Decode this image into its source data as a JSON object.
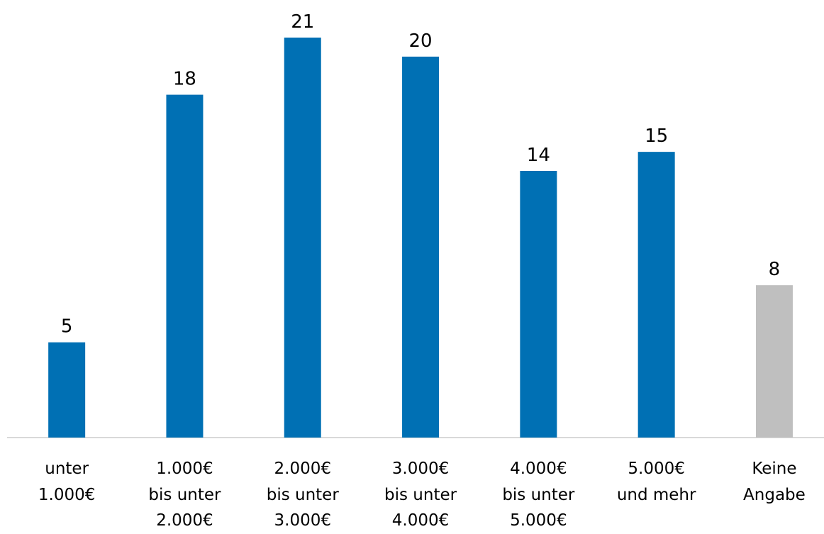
{
  "chart_data": {
    "type": "bar",
    "categories": [
      "unter\n1.000€",
      "1.000€\nbis unter\n2.000€",
      "2.000€\nbis unter\n3.000€",
      "3.000€\nbis unter\n4.000€",
      "4.000€\nbis unter\n5.000€",
      "5.000€\nund mehr",
      "Keine\nAngabe"
    ],
    "values": [
      5,
      18,
      21,
      20,
      14,
      15,
      8
    ],
    "colors": [
      "#0070b4",
      "#0070b4",
      "#0070b4",
      "#0070b4",
      "#0070b4",
      "#0070b4",
      "#bfbfbf"
    ],
    "ylim": [
      0,
      21
    ]
  }
}
